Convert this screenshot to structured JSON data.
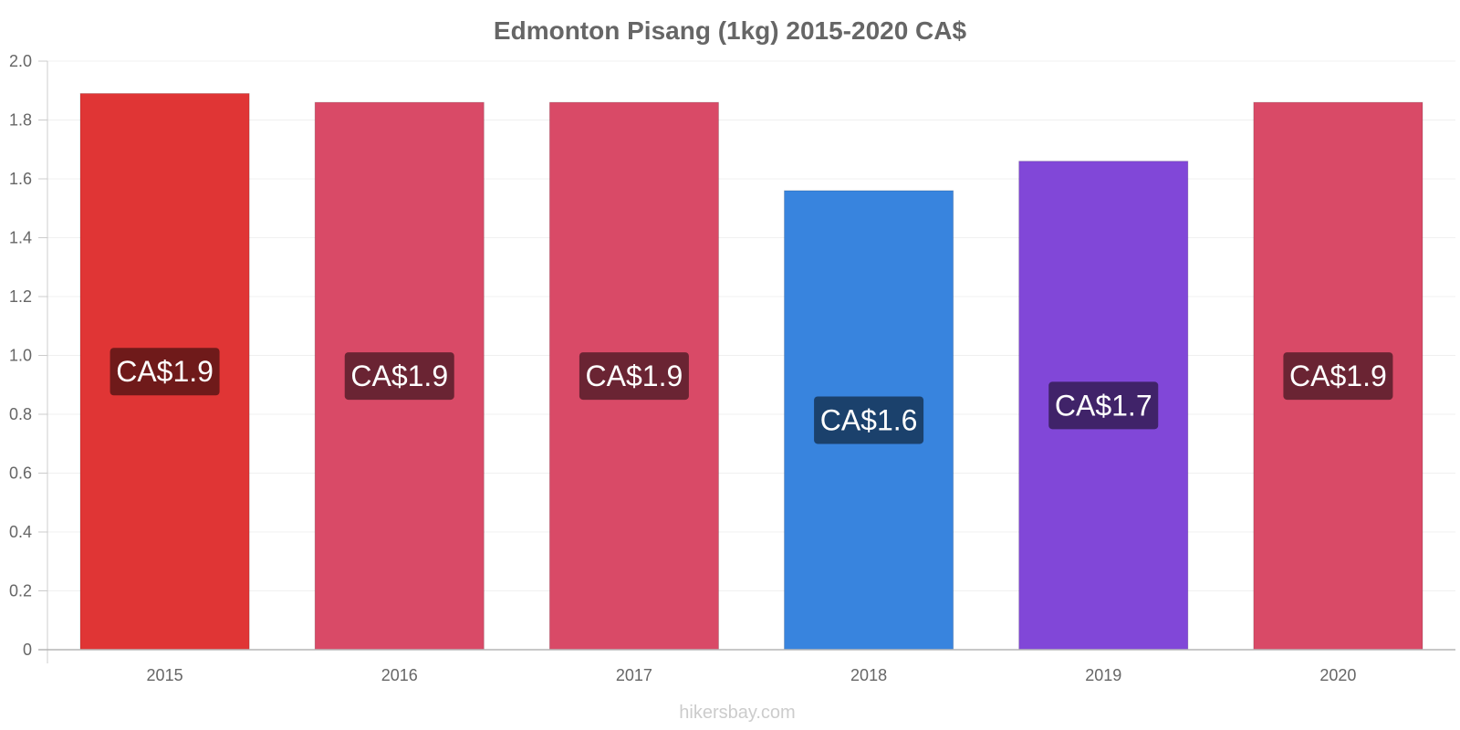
{
  "chart_data": {
    "type": "bar",
    "title": "Edmonton Pisang (1kg) 2015-2020 CA$",
    "xlabel": "",
    "ylabel": "",
    "categories": [
      "2015",
      "2016",
      "2017",
      "2018",
      "2019",
      "2020"
    ],
    "values": [
      1.89,
      1.86,
      1.86,
      1.56,
      1.66,
      1.86
    ],
    "data_labels": [
      "CA$1.9",
      "CA$1.9",
      "CA$1.9",
      "CA$1.6",
      "CA$1.7",
      "CA$1.9"
    ],
    "bar_colors": [
      "#e03535",
      "#d94a67",
      "#d94a67",
      "#3884de",
      "#8147d8",
      "#d94a67"
    ],
    "label_bg_colors": [
      "#6f1a1a",
      "#6a2433",
      "#6a2433",
      "#1b416c",
      "#402369",
      "#6a2433"
    ],
    "ylim": [
      0,
      2.0
    ],
    "yticks": [
      0,
      0.2,
      0.4,
      0.6,
      0.8,
      1.0,
      1.2,
      1.4,
      1.6,
      1.8,
      2.0
    ],
    "ytick_labels": [
      "0",
      "0.2",
      "0.4",
      "0.6",
      "0.8",
      "1.0",
      "1.2",
      "1.4",
      "1.6",
      "1.8",
      "2.0"
    ],
    "grid": true,
    "legend": "none"
  },
  "watermark": "hikersbay.com"
}
